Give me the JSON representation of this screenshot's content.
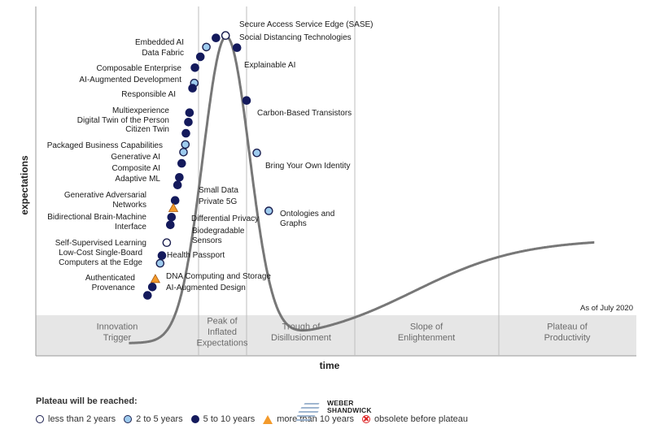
{
  "chart_data": {
    "type": "scatter",
    "xlabel": "time",
    "ylabel": "expectations",
    "as_of": "As of July 2020",
    "phases": [
      [
        "Innovation",
        "Trigger"
      ],
      [
        "Peak of",
        "Inflated",
        "Expectations"
      ],
      [
        "Trough of",
        "Disillusionment"
      ],
      [
        "Slope of",
        "Enlightenment"
      ],
      [
        "Plateau of",
        "Productivity"
      ]
    ],
    "curve_point_count": 900,
    "points": [
      {
        "label": [
          "Secure Access Service Edge (SASE)"
        ],
        "x": 0.316,
        "y": 0.917,
        "cat": "lt2"
      },
      {
        "label": [
          "Social Distancing Technologies"
        ],
        "x": 0.316,
        "y": 0.917,
        "cat": "lt2"
      },
      {
        "label": [
          "Embedded AI"
        ],
        "x": 0.3,
        "y": 0.91,
        "cat": "b510"
      },
      {
        "label": [
          "Data Fabric"
        ],
        "x": 0.284,
        "y": 0.884,
        "cat": "b25"
      },
      {
        "label": [
          "Explainable AI"
        ],
        "x": 0.335,
        "y": 0.882,
        "cat": "b510"
      },
      {
        "label": [
          "Composable Enterprise"
        ],
        "x": 0.274,
        "y": 0.856,
        "cat": "b510"
      },
      {
        "label": [
          "AI-Augmented Development"
        ],
        "x": 0.265,
        "y": 0.825,
        "cat": "b510"
      },
      {
        "label": [
          "Responsible AI"
        ],
        "x": 0.264,
        "y": 0.781,
        "cat": "b25"
      },
      {
        "label": [
          "Carbon-Based Transistors"
        ],
        "x": 0.351,
        "y": 0.731,
        "cat": "b510"
      },
      {
        "label": [
          "Multiexperience"
        ],
        "x": 0.261,
        "y": 0.766,
        "cat": "b510"
      },
      {
        "label": [
          "Digital Twin of the Person"
        ],
        "x": 0.256,
        "y": 0.696,
        "cat": "b510"
      },
      {
        "label": [
          "Citizen Twin"
        ],
        "x": 0.254,
        "y": 0.669,
        "cat": "b510"
      },
      {
        "label": [
          "Packaged Business Capabilities"
        ],
        "x": 0.25,
        "y": 0.637,
        "cat": "b510"
      },
      {
        "label": [
          "Generative AI"
        ],
        "x": 0.249,
        "y": 0.605,
        "cat": "b25"
      },
      {
        "label": [
          "Composite AI"
        ],
        "x": 0.246,
        "y": 0.583,
        "cat": "b25"
      },
      {
        "label": [
          "Bring Your Own Identity"
        ],
        "x": 0.368,
        "y": 0.581,
        "cat": "b25"
      },
      {
        "label": [
          "Adaptive ML"
        ],
        "x": 0.243,
        "y": 0.551,
        "cat": "b510"
      },
      {
        "label": [
          "Small Data"
        ],
        "x": 0.239,
        "y": 0.511,
        "cat": "b510"
      },
      {
        "label": [
          "Private 5G"
        ],
        "x": 0.236,
        "y": 0.489,
        "cat": "b510"
      },
      {
        "label": [
          "Generative Adversarial",
          "Networks"
        ],
        "x": 0.232,
        "y": 0.445,
        "cat": "b510"
      },
      {
        "label": [
          "Ontologies and",
          "Graphs"
        ],
        "x": 0.388,
        "y": 0.415,
        "cat": "b25"
      },
      {
        "label": [
          "Differential Privacy"
        ],
        "x": 0.229,
        "y": 0.423,
        "cat": "gt10"
      },
      {
        "label": [
          "Bidirectional Brain-Machine",
          "Interface"
        ],
        "x": 0.226,
        "y": 0.397,
        "cat": "b510"
      },
      {
        "label": [
          "Biodegradable",
          "Sensors"
        ],
        "x": 0.224,
        "y": 0.375,
        "cat": "b510"
      },
      {
        "label": [
          "Self-Supervised Learning"
        ],
        "x": 0.218,
        "y": 0.324,
        "cat": "lt2"
      },
      {
        "label": [
          "Health Passport"
        ],
        "x": 0.21,
        "y": 0.287,
        "cat": "b510"
      },
      {
        "label": [
          "Low-Cost Single-Board",
          "Computers at the Edge"
        ],
        "x": 0.207,
        "y": 0.265,
        "cat": "b25"
      },
      {
        "label": [
          "DNA Computing and Storage"
        ],
        "x": 0.199,
        "y": 0.22,
        "cat": "gt10"
      },
      {
        "label": [
          "Authenticated",
          "Provenance"
        ],
        "x": 0.186,
        "y": 0.173,
        "cat": "b510"
      },
      {
        "label": [
          "AI-Augmented Design"
        ],
        "x": 0.194,
        "y": 0.197,
        "cat": "b510"
      }
    ]
  },
  "legend": {
    "title": "Plateau will be reached:",
    "items": [
      {
        "cat": "lt2",
        "label": "less than 2 years"
      },
      {
        "cat": "b25",
        "label": "2 to 5 years"
      },
      {
        "cat": "b510",
        "label": "5 to 10 years"
      },
      {
        "cat": "gt10",
        "label": "more than 10 years"
      },
      {
        "cat": "obs",
        "label": "obsolete before plateau"
      }
    ]
  },
  "watermark": {
    "brand_lines": [
      "WEBER",
      "SHANDWICK"
    ]
  },
  "colors": {
    "lt2": "#ffffff",
    "b25": "#9ecbee",
    "b510": "#141a5c",
    "gt10": "#f39a2b",
    "obs": "#dd2222",
    "curve": "#777777",
    "outline": "#1b1f4f"
  }
}
